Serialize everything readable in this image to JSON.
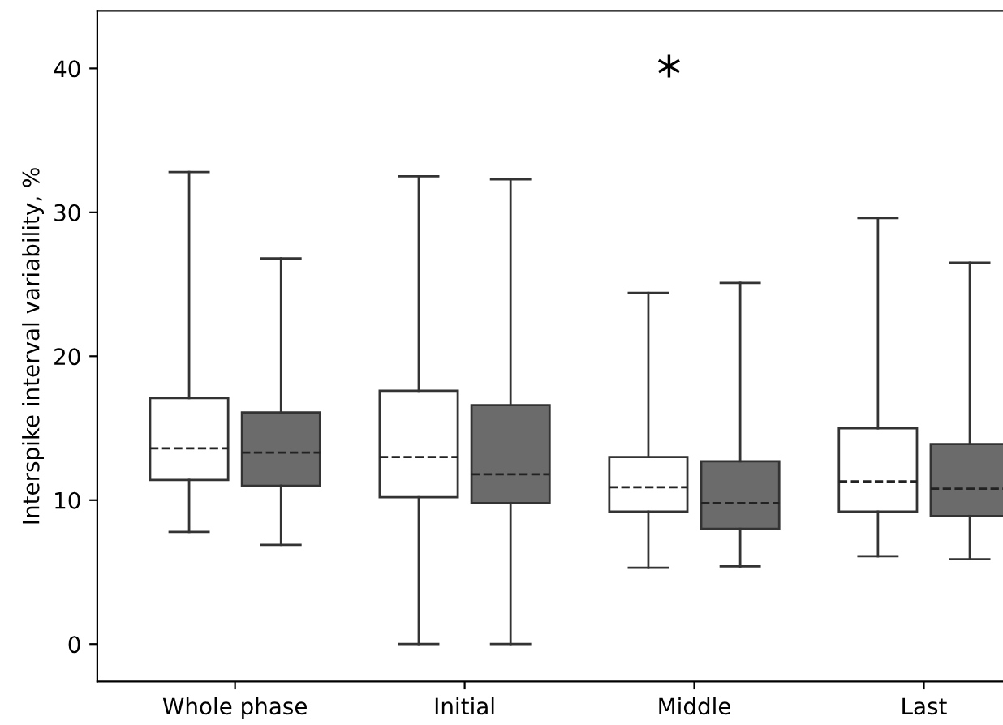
{
  "chart_data": {
    "type": "box",
    "ylabel": "Interspike interval variability, %",
    "categories": [
      "Whole phase",
      "Initial",
      "Middle",
      "Last"
    ],
    "series": [
      {
        "color": "#ffffff",
        "boxes": [
          {
            "low": 7.8,
            "q1": 11.4,
            "median": 13.6,
            "q3": 17.1,
            "high": 32.8
          },
          {
            "low": 0,
            "q1": 10.2,
            "median": 13.0,
            "q3": 17.6,
            "high": 32.5
          },
          {
            "low": 5.3,
            "q1": 9.2,
            "median": 10.9,
            "q3": 13.0,
            "high": 24.4
          },
          {
            "low": 6.1,
            "q1": 9.2,
            "median": 11.3,
            "q3": 15.0,
            "high": 29.6
          }
        ]
      },
      {
        "color": "#6b6b6b",
        "boxes": [
          {
            "low": 6.9,
            "q1": 11.0,
            "median": 13.3,
            "q3": 16.1,
            "high": 26.8
          },
          {
            "low": 0,
            "q1": 9.8,
            "median": 11.8,
            "q3": 16.6,
            "high": 32.3
          },
          {
            "low": 5.4,
            "q1": 8.0,
            "median": 9.8,
            "q3": 12.7,
            "high": 25.1
          },
          {
            "low": 5.9,
            "q1": 8.9,
            "median": 10.8,
            "q3": 13.9,
            "high": 26.5
          }
        ]
      }
    ],
    "annotations": [
      "*"
    ],
    "ylim": [
      -2.6,
      44
    ],
    "yticks": [
      0,
      10,
      20,
      30,
      40
    ],
    "grid": false,
    "legend": false
  }
}
